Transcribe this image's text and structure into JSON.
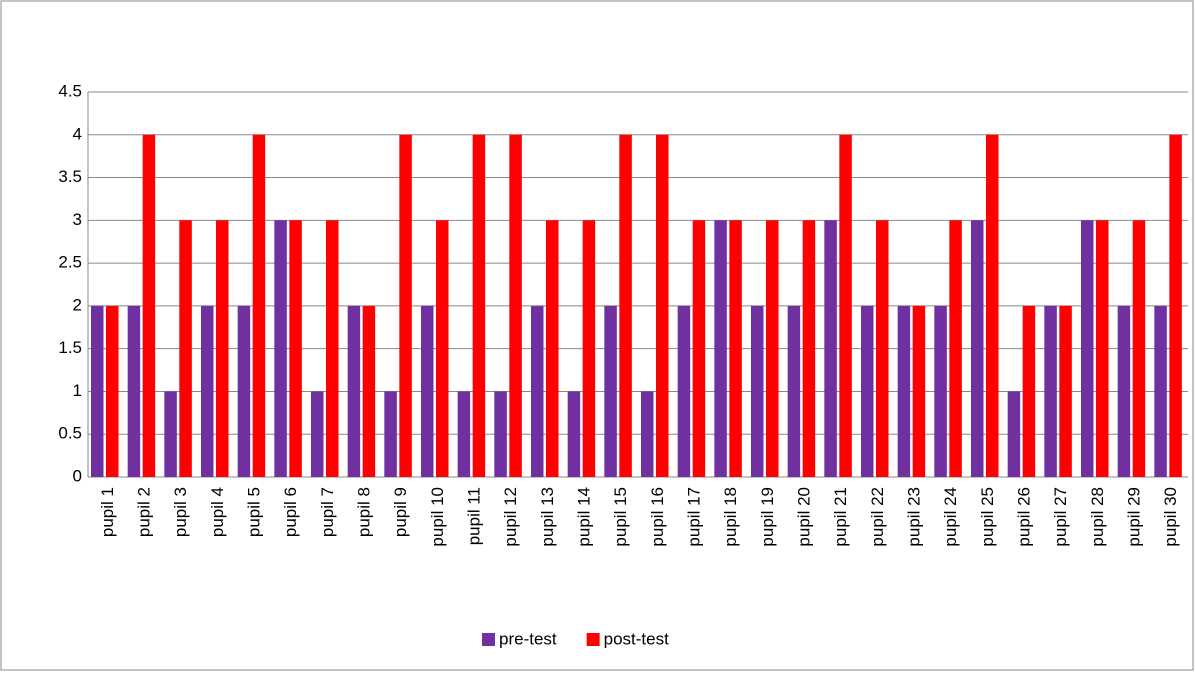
{
  "chart_data": {
    "type": "bar",
    "categories": [
      "pupil 1",
      "pupil 2",
      "pupil 3",
      "pupil 4",
      "pupil 5",
      "pupil 6",
      "pupil 7",
      "pupil 8",
      "pupil 9",
      "pupil 10",
      "pupil 11",
      "pupil 12",
      "pupil 13",
      "pupil 14",
      "pupil 15",
      "pupil 16",
      "pupil 17",
      "pupil 18",
      "pupil 19",
      "pupil 20",
      "pupil 21",
      "pupil 22",
      "pupil 23",
      "pupil 24",
      "pupil 25",
      "pupil 26",
      "pupil 27",
      "pupil 28",
      "pupil 29",
      "pupil 30"
    ],
    "series": [
      {
        "name": "pre-test",
        "color": "#7030a0",
        "values": [
          2,
          2,
          1,
          2,
          2,
          3,
          1,
          2,
          1,
          2,
          1,
          1,
          2,
          1,
          2,
          1,
          2,
          3,
          2,
          2,
          3,
          2,
          2,
          2,
          3,
          1,
          2,
          3,
          2,
          2
        ]
      },
      {
        "name": "post-test",
        "color": "#ff0000",
        "values": [
          2,
          4,
          3,
          3,
          4,
          3,
          3,
          2,
          4,
          3,
          4,
          4,
          3,
          3,
          4,
          4,
          3,
          3,
          3,
          3,
          4,
          3,
          2,
          3,
          4,
          2,
          2,
          3,
          3,
          4
        ]
      }
    ],
    "ylim": [
      0,
      4.5
    ],
    "yticks": [
      0,
      0.5,
      1,
      1.5,
      2,
      2.5,
      3,
      3.5,
      4,
      4.5
    ],
    "grid": true,
    "legend": "bottom"
  }
}
